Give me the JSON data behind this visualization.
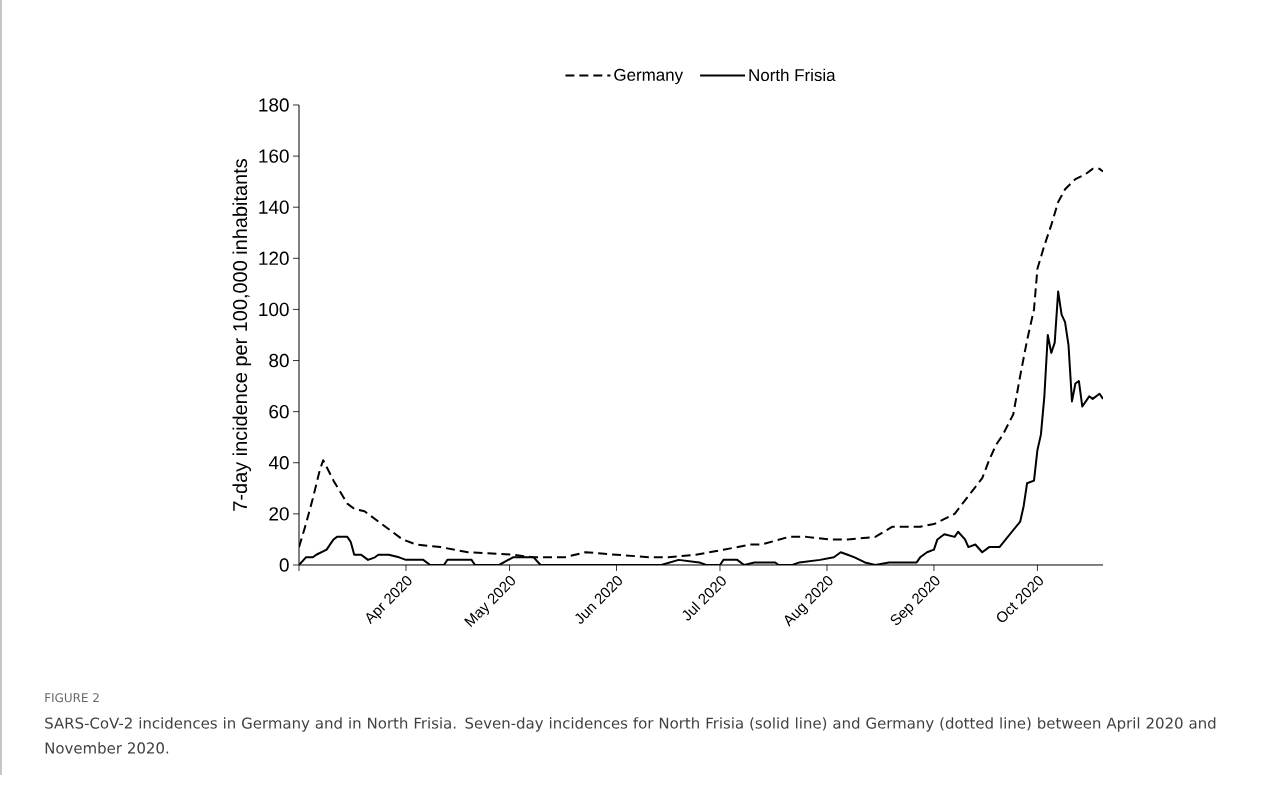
{
  "chart_data": {
    "type": "line",
    "ylabel": "7-day incidence per 100,000 inhabitants",
    "annotations": [
      "FIGURE 2",
      "SARS-CoV-2 incidences in Germany and in North Frisia. Seven-day incidences for North Frisia (solid line) and Germany (dotted line) between April 2020 and November 2020."
    ],
    "xlim": [
      "2020-03-17",
      "2020-11-05"
    ],
    "xticks": [
      {
        "value": "2020-03-17",
        "label": null
      },
      {
        "value": "2020-04-17",
        "label": "Apr 2020"
      },
      {
        "value": "2020-05-17",
        "label": "May 2020"
      },
      {
        "value": "2020-06-17",
        "label": "Jun 2020"
      },
      {
        "value": "2020-07-17",
        "label": "Jul 2020"
      },
      {
        "value": "2020-08-17",
        "label": "Aug 2020"
      },
      {
        "value": "2020-09-17",
        "label": "Sep 2020"
      },
      {
        "value": "2020-10-17",
        "label": "Oct 2020"
      }
    ],
    "ylim": [
      0,
      180
    ],
    "yticks": [
      0,
      20,
      40,
      60,
      80,
      100,
      120,
      140,
      160,
      180
    ],
    "legend": "top",
    "series": [
      {
        "name": "Germany",
        "color": "#000000",
        "line_style": "dashed",
        "x": [
          "2020-03-17",
          "2020-03-19",
          "2020-03-21",
          "2020-03-23",
          "2020-03-24",
          "2020-03-27",
          "2020-03-31",
          "2020-04-02",
          "2020-04-05",
          "2020-04-06",
          "2020-04-10",
          "2020-04-16",
          "2020-04-20",
          "2020-04-27",
          "2020-05-05",
          "2020-05-18",
          "2020-05-24",
          "2020-05-29",
          "2020-06-02",
          "2020-06-08",
          "2020-06-17",
          "2020-06-27",
          "2020-07-02",
          "2020-07-10",
          "2020-07-18",
          "2020-07-26",
          "2020-07-29",
          "2020-08-06",
          "2020-08-11",
          "2020-08-18",
          "2020-08-23",
          "2020-08-31",
          "2020-09-05",
          "2020-09-13",
          "2020-09-17",
          "2020-09-23",
          "2020-09-27",
          "2020-10-01",
          "2020-10-03",
          "2020-10-05",
          "2020-10-07",
          "2020-10-10",
          "2020-10-12",
          "2020-10-14",
          "2020-10-16",
          "2020-10-17",
          "2020-10-19",
          "2020-10-21",
          "2020-10-23",
          "2020-10-25",
          "2020-10-28",
          "2020-10-31",
          "2020-11-02",
          "2020-11-04",
          "2020-11-05"
        ],
        "values": [
          7,
          16,
          26,
          37,
          41,
          33,
          24,
          22,
          21,
          20,
          16,
          10,
          8,
          7,
          5,
          4,
          3,
          3,
          3,
          5,
          4,
          3,
          3,
          4,
          6,
          8,
          8,
          11,
          11,
          10,
          10,
          11,
          15,
          15,
          16,
          20,
          27,
          34,
          41,
          47,
          51,
          59,
          74,
          88,
          100,
          116,
          125,
          133,
          142,
          147,
          151,
          153,
          155,
          155,
          154
        ]
      },
      {
        "name": "North Frisia",
        "color": "#000000",
        "line_style": "solid",
        "x": [
          "2020-03-17",
          "2020-03-19",
          "2020-03-21",
          "2020-03-22",
          "2020-03-25",
          "2020-03-27",
          "2020-03-28",
          "2020-03-31",
          "2020-04-01",
          "2020-04-02",
          "2020-04-04",
          "2020-04-06",
          "2020-04-08",
          "2020-04-09",
          "2020-04-12",
          "2020-04-15",
          "2020-04-17",
          "2020-04-19",
          "2020-04-22",
          "2020-04-24",
          "2020-04-28",
          "2020-04-29",
          "2020-05-06",
          "2020-05-07",
          "2020-05-14",
          "2020-05-18",
          "2020-05-24",
          "2020-05-26",
          "2020-06-30",
          "2020-07-05",
          "2020-07-11",
          "2020-07-13",
          "2020-07-17",
          "2020-07-18",
          "2020-07-22",
          "2020-07-24",
          "2020-07-27",
          "2020-08-02",
          "2020-08-03",
          "2020-08-07",
          "2020-08-09",
          "2020-08-15",
          "2020-08-19",
          "2020-08-21",
          "2020-08-23",
          "2020-08-25",
          "2020-08-28",
          "2020-08-31",
          "2020-09-04",
          "2020-09-08",
          "2020-09-12",
          "2020-09-13",
          "2020-09-15",
          "2020-09-17",
          "2020-09-18",
          "2020-09-20",
          "2020-09-23",
          "2020-09-24",
          "2020-09-26",
          "2020-09-27",
          "2020-09-29",
          "2020-10-01",
          "2020-10-03",
          "2020-10-06",
          "2020-10-09",
          "2020-10-12",
          "2020-10-13",
          "2020-10-14",
          "2020-10-16",
          "2020-10-17",
          "2020-10-18",
          "2020-10-19",
          "2020-10-20",
          "2020-10-21",
          "2020-10-22",
          "2020-10-23",
          "2020-10-24",
          "2020-10-25",
          "2020-10-26",
          "2020-10-27",
          "2020-10-28",
          "2020-10-29",
          "2020-10-30",
          "2020-11-01",
          "2020-11-02",
          "2020-11-04",
          "2020-11-05"
        ],
        "values": [
          0,
          3,
          3,
          4,
          6,
          10,
          11,
          11,
          9,
          4,
          4,
          2,
          3,
          4,
          4,
          3,
          2,
          2,
          2,
          0,
          0,
          2,
          2,
          0,
          0,
          3,
          3,
          0,
          0,
          2,
          1,
          0,
          0,
          2,
          2,
          0,
          1,
          1,
          0,
          0,
          1,
          2,
          3,
          5,
          4,
          3,
          1,
          0,
          1,
          1,
          1,
          3,
          5,
          6,
          10,
          12,
          11,
          13,
          10,
          7,
          8,
          5,
          7,
          7,
          12,
          17,
          23,
          32,
          33,
          45,
          51,
          66,
          90,
          83,
          87,
          107,
          98,
          95,
          86,
          64,
          71,
          72,
          62,
          66,
          65,
          67,
          65
        ]
      }
    ]
  }
}
